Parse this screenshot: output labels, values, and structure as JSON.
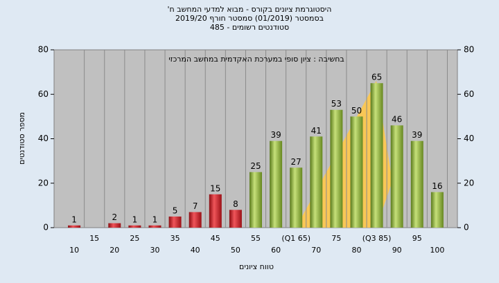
{
  "chart_data": {
    "type": "bar",
    "title": "היסטוגרמת ציונים בקורס - מבוא למדעי המחשב ח'",
    "subtitle": "בסמסטר (01/2019) סמסטר חורף 2019/20",
    "subtitle2": "סטודנטים רשומים - 485",
    "annotation": "בחשיבה : ציון סופי במערכת האקדמית במחשב המרכזי",
    "x_label": "טווח ציונים",
    "y_label": "מספר סטודנטים",
    "categories": [
      "10",
      "15",
      "20",
      "25",
      "30",
      "35",
      "40",
      "45",
      "50",
      "55",
      "60",
      "(Q1 65)",
      "70",
      "75",
      "80",
      "(Q3 85)",
      "90",
      "95",
      "100"
    ],
    "values": [
      1,
      null,
      2,
      1,
      1,
      5,
      7,
      15,
      8,
      25,
      39,
      27,
      41,
      53,
      50,
      65,
      46,
      39,
      16
    ],
    "colors": [
      "red",
      "red",
      "red",
      "red",
      "red",
      "red",
      "red",
      "red",
      "red",
      "green",
      "green",
      "green",
      "green",
      "green",
      "green",
      "green",
      "green",
      "green",
      "green"
    ],
    "ylim": [
      0,
      80
    ],
    "yticks": [
      0,
      20,
      40,
      60,
      80
    ],
    "y2lim": [
      0,
      80
    ],
    "y2ticks": [
      0,
      20,
      40,
      60,
      80
    ]
  }
}
